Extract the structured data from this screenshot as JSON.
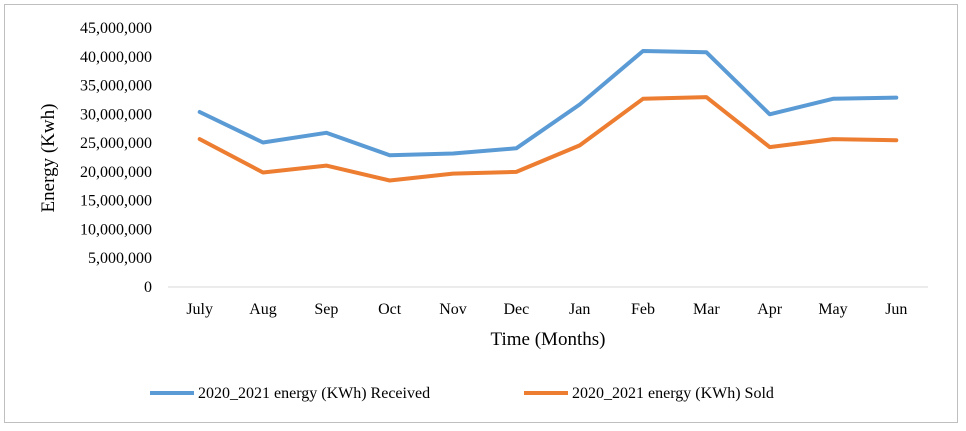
{
  "chart_data": {
    "type": "line",
    "title": "",
    "xlabel": "Time (Months)",
    "ylabel": "Energy (Kwh)",
    "categories": [
      "July",
      "Aug",
      "Sep",
      "Oct",
      "Nov",
      "Dec",
      "Jan",
      "Feb",
      "Mar",
      "Apr",
      "May",
      "Jun"
    ],
    "ylim": [
      0,
      45000000
    ],
    "y_ticks": [
      "0",
      "5,000,000",
      "10,000,000",
      "15,000,000",
      "20,000,000",
      "25,000,000",
      "30,000,000",
      "35,000,000",
      "40,000,000",
      "45,000,000"
    ],
    "grid": false,
    "legend_position": "bottom",
    "series": [
      {
        "name": "2020_2021 energy (KWh) Received",
        "color": "#5b9bd5",
        "values": [
          30400000,
          25100000,
          26800000,
          22900000,
          23200000,
          24100000,
          31700000,
          41000000,
          40800000,
          30000000,
          32700000,
          32900000
        ]
      },
      {
        "name": "2020_2021 energy (KWh) Sold",
        "color": "#ed7d31",
        "values": [
          25700000,
          19900000,
          21100000,
          18500000,
          19700000,
          20000000,
          24600000,
          32700000,
          33000000,
          24300000,
          25700000,
          25500000
        ]
      }
    ]
  }
}
